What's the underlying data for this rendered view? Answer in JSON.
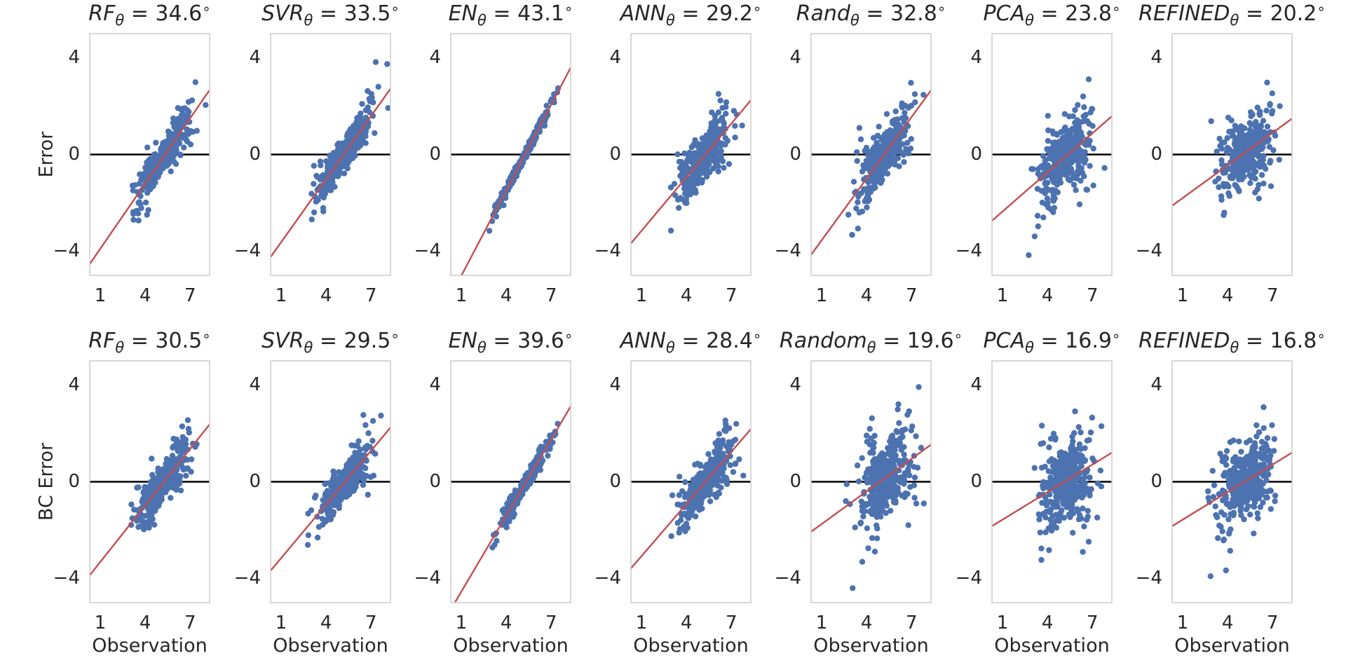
{
  "colors": {
    "points": "#4c72b0",
    "fit": "#c44e52",
    "zero": "#000000",
    "frame": "#cccccc"
  },
  "chart_data": {
    "type": "scatter",
    "grid": false,
    "xlabel": "Observation",
    "xlim": [
      0.3,
      8.3
    ],
    "ylim": [
      -5,
      5
    ],
    "xticks": [
      1,
      4,
      7
    ],
    "yticks": [
      4,
      0,
      -4
    ],
    "ytick_labels": [
      "4",
      "0",
      "−4"
    ],
    "reference_line_y": 0,
    "rows": [
      {
        "ylabel": "Error",
        "panels": [
          {
            "name": "RF",
            "value": "34.6",
            "fit": {
              "intercept": -4.8,
              "slope": 0.9
            },
            "spread": 0.45,
            "seed": 11
          },
          {
            "name": "SVR",
            "value": "33.5",
            "fit": {
              "intercept": -4.5,
              "slope": 0.87
            },
            "spread": 0.45,
            "seed": 12
          },
          {
            "name": "EN",
            "value": "43.1",
            "fit": {
              "intercept": -6.2,
              "slope": 1.18
            },
            "spread": 0.12,
            "seed": 13
          },
          {
            "name": "ANN",
            "value": "29.2",
            "fit": {
              "intercept": -3.9,
              "slope": 0.74
            },
            "spread": 0.6,
            "seed": 14
          },
          {
            "name": "Rand",
            "value": "32.8",
            "fit": {
              "intercept": -4.4,
              "slope": 0.85
            },
            "spread": 0.65,
            "seed": 15
          },
          {
            "name": "PCA",
            "value": "23.8",
            "fit": {
              "intercept": -2.9,
              "slope": 0.54
            },
            "spread": 0.9,
            "seed": 16
          },
          {
            "name": "REFINED",
            "value": "20.2",
            "fit": {
              "intercept": -2.25,
              "slope": 0.45
            },
            "spread": 0.8,
            "seed": 17
          }
        ]
      },
      {
        "ylabel": "BC Error",
        "panels": [
          {
            "name": "RF",
            "value": "30.5",
            "fit": {
              "intercept": -4.1,
              "slope": 0.78
            },
            "spread": 0.5,
            "seed": 21
          },
          {
            "name": "SVR",
            "value": "29.5",
            "fit": {
              "intercept": -3.9,
              "slope": 0.74
            },
            "spread": 0.5,
            "seed": 22
          },
          {
            "name": "EN",
            "value": "39.6",
            "fit": {
              "intercept": -5.6,
              "slope": 1.05
            },
            "spread": 0.22,
            "seed": 23
          },
          {
            "name": "ANN",
            "value": "28.4",
            "fit": {
              "intercept": -3.8,
              "slope": 0.72
            },
            "spread": 0.55,
            "seed": 24
          },
          {
            "name": "Random",
            "value": "19.6",
            "fit": {
              "intercept": -2.2,
              "slope": 0.45
            },
            "spread": 1.1,
            "seed": 25
          },
          {
            "name": "PCA",
            "value": "16.9",
            "fit": {
              "intercept": -1.95,
              "slope": 0.38
            },
            "spread": 1.05,
            "seed": 26
          },
          {
            "name": "REFINED",
            "value": "16.8",
            "fit": {
              "intercept": -1.95,
              "slope": 0.38
            },
            "spread": 0.85,
            "seed": 27
          }
        ]
      }
    ]
  }
}
